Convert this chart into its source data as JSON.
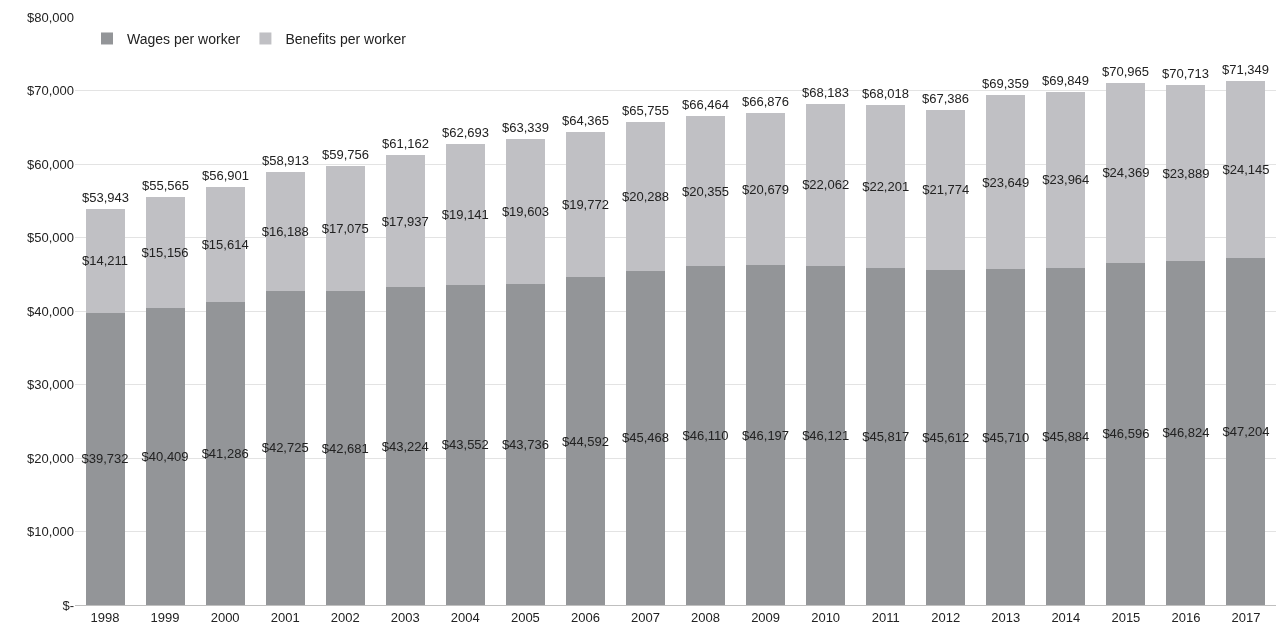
{
  "chart_data": {
    "type": "bar",
    "stacked": true,
    "categories": [
      "1998",
      "1999",
      "2000",
      "2001",
      "2002",
      "2003",
      "2004",
      "2005",
      "2006",
      "2007",
      "2008",
      "2009",
      "2010",
      "2011",
      "2012",
      "2013",
      "2014",
      "2015",
      "2016",
      "2017"
    ],
    "series": [
      {
        "name": "Wages per worker",
        "color": "#939598",
        "values": [
          39732,
          40409,
          41286,
          42725,
          42681,
          43224,
          43552,
          43736,
          44592,
          45468,
          46110,
          46197,
          46121,
          45817,
          45612,
          45710,
          45884,
          46596,
          46824,
          47204
        ],
        "value_labels": [
          "$39,732",
          "$40,409",
          "$41,286",
          "$42,725",
          "$42,681",
          "$43,224",
          "$43,552",
          "$43,736",
          "$44,592",
          "$45,468",
          "$46,110",
          "$46,197",
          "$46,121",
          "$45,817",
          "$45,612",
          "$45,710",
          "$45,884",
          "$46,596",
          "$46,824",
          "$47,204"
        ]
      },
      {
        "name": "Benefits per worker",
        "color": "#c0c0c4",
        "values": [
          14211,
          15156,
          15614,
          16188,
          17075,
          17937,
          19141,
          19603,
          19772,
          20288,
          20355,
          20679,
          22062,
          22201,
          21774,
          23649,
          23964,
          24369,
          23889,
          24145
        ],
        "value_labels": [
          "$14,211",
          "$15,156",
          "$15,614",
          "$16,188",
          "$17,075",
          "$17,937",
          "$19,141",
          "$19,603",
          "$19,772",
          "$20,288",
          "$20,355",
          "$20,679",
          "$22,062",
          "$22,201",
          "$21,774",
          "$23,649",
          "$23,964",
          "$24,369",
          "$23,889",
          "$24,145"
        ]
      }
    ],
    "totals": [
      "$53,943",
      "$55,565",
      "$56,901",
      "$58,913",
      "$59,756",
      "$61,162",
      "$62,693",
      "$63,339",
      "$64,365",
      "$65,755",
      "$66,464",
      "$66,876",
      "$68,183",
      "$68,018",
      "$67,386",
      "$69,359",
      "$69,849",
      "$70,965",
      "$70,713",
      "$71,349"
    ],
    "ylim": [
      0,
      80000
    ],
    "yticks": [
      {
        "value": 0,
        "label": "$-"
      },
      {
        "value": 10000,
        "label": "$10,000"
      },
      {
        "value": 20000,
        "label": "$20,000"
      },
      {
        "value": 30000,
        "label": "$30,000"
      },
      {
        "value": 40000,
        "label": "$40,000"
      },
      {
        "value": 50000,
        "label": "$50,000"
      },
      {
        "value": 60000,
        "label": "$60,000"
      },
      {
        "value": 70000,
        "label": "$70,000"
      },
      {
        "value": 80000,
        "label": "$80,000"
      }
    ],
    "grid": "y",
    "legend": "top left"
  }
}
